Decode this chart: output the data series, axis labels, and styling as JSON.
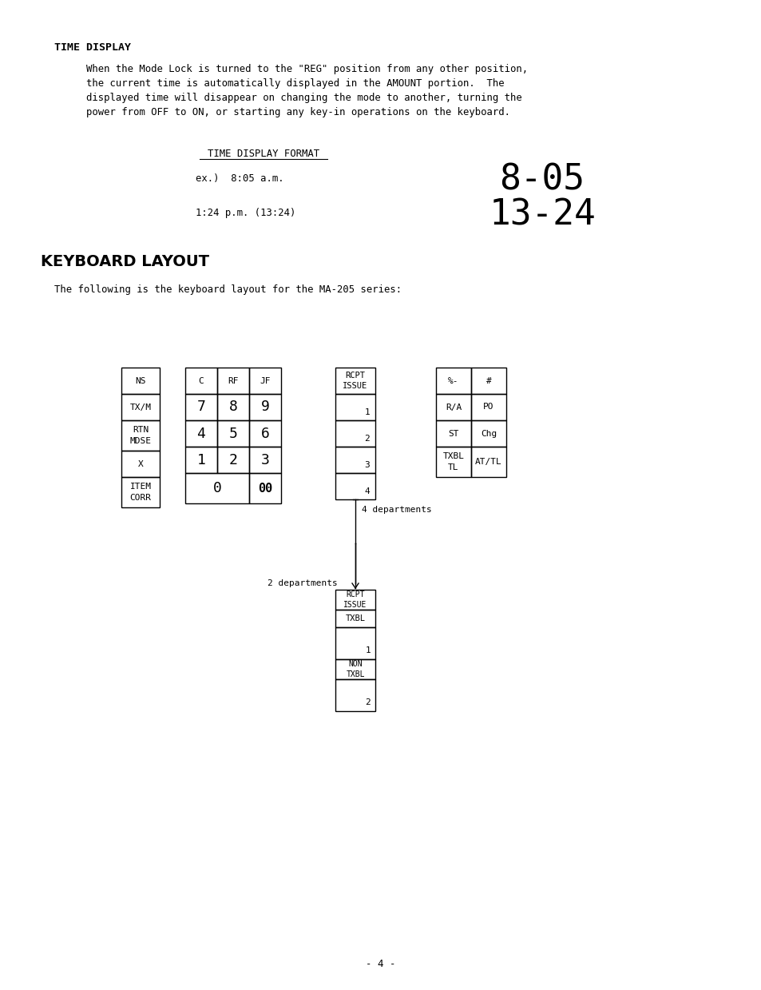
{
  "bg_color": "#ffffff",
  "title_bold": "TIME DISPLAY",
  "para1_lines": [
    "When the Mode Lock is turned to the \"REG\" position from any other position,",
    "the current time is automatically displayed in the AMOUNT portion.  The",
    "displayed time will disappear on changing the mode to another, turning the",
    "power from OFF to ON, or starting any key-in operations on the keyboard."
  ],
  "time_display_format": "TIME DISPLAY FORMAT",
  "ex1_text": "ex.)  8:05 a.m.",
  "ex1_display": "8-05",
  "ex2_text": "1:24 p.m. (13:24)",
  "ex2_display": "13-24",
  "keyboard_layout_title": "KEYBOARD LAYOUT",
  "keyboard_intro": "The following is the keyboard layout for the MA-205 series:",
  "page_number": "- 4 -"
}
